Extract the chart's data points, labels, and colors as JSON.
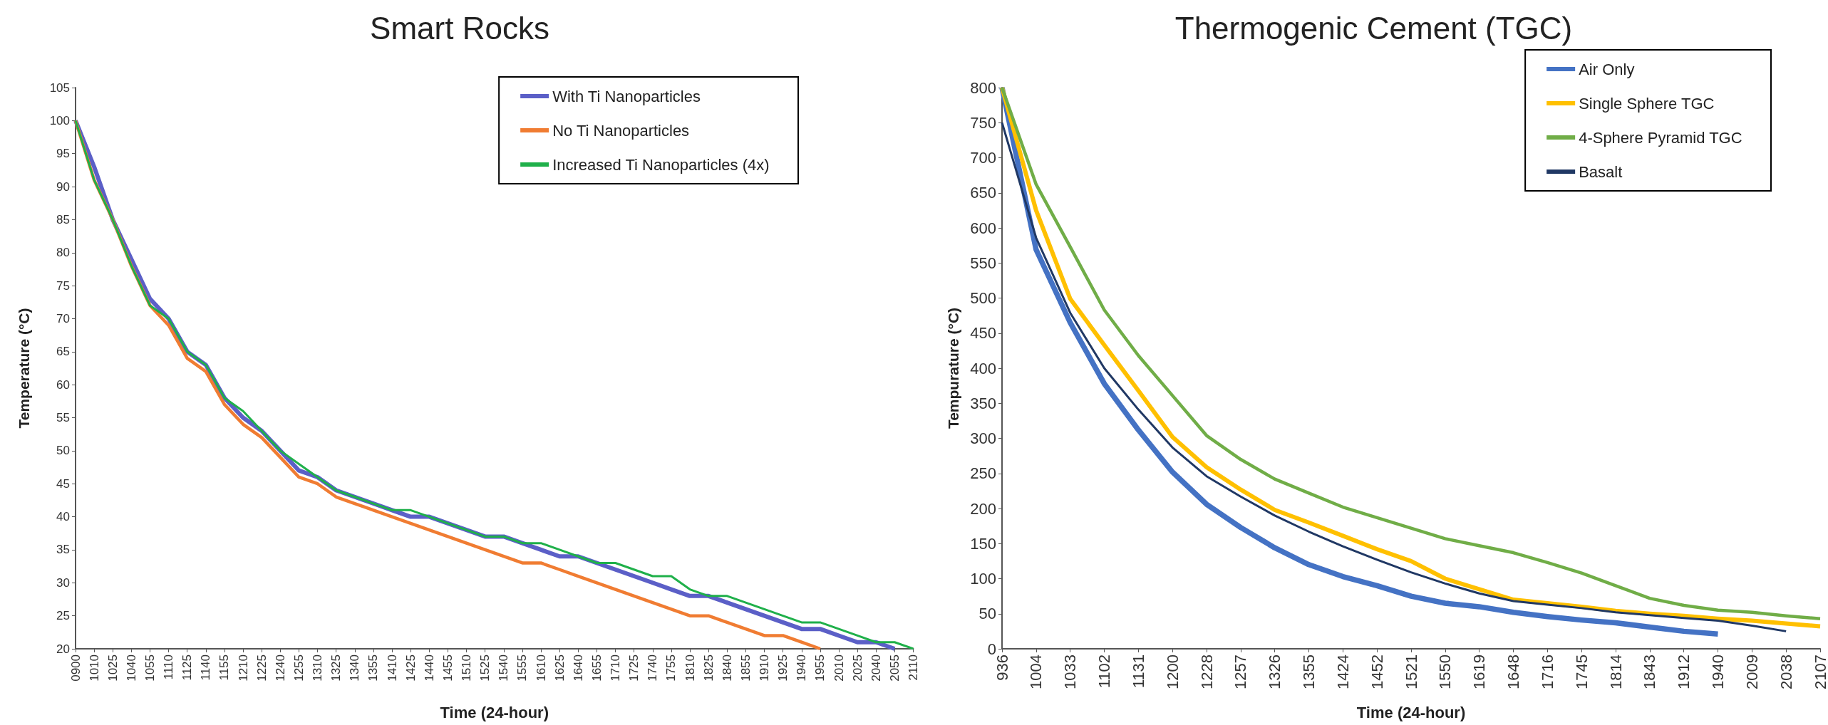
{
  "chart_data": [
    {
      "type": "line",
      "title": "Smart Rocks",
      "xlabel": "Time (24-hour)",
      "ylabel": "Temperature (°C)",
      "legend": "top right",
      "marker": "none",
      "grid": false,
      "ylim": [
        20,
        105
      ],
      "yticks": [
        20,
        25,
        30,
        35,
        40,
        45,
        50,
        55,
        60,
        65,
        70,
        75,
        80,
        85,
        90,
        95,
        100,
        105
      ],
      "categories": [
        "0900",
        "1010",
        "1025",
        "1040",
        "1055",
        "1110",
        "1125",
        "1140",
        "1155",
        "1210",
        "1225",
        "1240",
        "1255",
        "1310",
        "1325",
        "1340",
        "1355",
        "1410",
        "1425",
        "1440",
        "1455",
        "1510",
        "1525",
        "1540",
        "1555",
        "1610",
        "1625",
        "1640",
        "1655",
        "1710",
        "1725",
        "1740",
        "1755",
        "1810",
        "1825",
        "1840",
        "1855",
        "1910",
        "1925",
        "1940",
        "1955",
        "2010",
        "2025",
        "2040",
        "2055",
        "2110"
      ],
      "series": [
        {
          "name": "With Ti Nanoparticles",
          "color": "#5b5fc7",
          "values": [
            100,
            93,
            85,
            79,
            73,
            70,
            65,
            63,
            58,
            55,
            53,
            50,
            47,
            46,
            44,
            43,
            42,
            41,
            40,
            40,
            39,
            38,
            37,
            37,
            36,
            35,
            34,
            34,
            33,
            32,
            31,
            30,
            29,
            28,
            28,
            27,
            26,
            25,
            24,
            23,
            23,
            22,
            21,
            21,
            20,
            null
          ]
        },
        {
          "name": "No Ti Nanoparticles",
          "color": "#f07c32",
          "values": [
            100,
            91,
            85,
            78,
            72,
            69,
            64,
            62,
            57,
            54,
            52,
            49,
            46,
            45,
            43,
            42,
            41,
            40,
            39,
            38,
            37,
            36,
            35,
            34,
            33,
            33,
            32,
            31,
            30,
            29,
            28,
            27,
            26,
            25,
            25,
            24,
            23,
            22,
            22,
            21,
            20,
            null,
            null,
            null,
            null,
            null
          ]
        },
        {
          "name": "Increased Ti Nanoparticles (4x)",
          "color": "#1fb04a",
          "values": [
            100,
            91,
            85,
            78,
            72,
            70,
            65,
            63,
            58,
            56,
            53,
            50,
            48,
            46,
            44,
            43,
            42,
            41,
            41,
            40,
            39,
            38,
            37,
            37,
            36,
            36,
            35,
            34,
            33,
            33,
            32,
            31,
            31,
            29,
            28,
            28,
            27,
            26,
            25,
            24,
            24,
            23,
            22,
            21,
            21,
            20
          ]
        }
      ]
    },
    {
      "type": "line",
      "title": "Thermogenic Cement (TGC)",
      "xlabel": "Time (24-hour)",
      "ylabel": "Tempurature (°C)",
      "legend": "top right",
      "marker": "none",
      "grid": false,
      "ylim": [
        0,
        800
      ],
      "yticks": [
        0,
        50,
        100,
        150,
        200,
        250,
        300,
        350,
        400,
        450,
        500,
        550,
        600,
        650,
        700,
        750,
        800
      ],
      "categories": [
        "936",
        "1004",
        "1033",
        "1102",
        "1131",
        "1200",
        "1228",
        "1257",
        "1326",
        "1355",
        "1424",
        "1452",
        "1521",
        "1550",
        "1619",
        "1648",
        "1716",
        "1745",
        "1814",
        "1843",
        "1912",
        "1940",
        "2009",
        "2038",
        "2107"
      ],
      "series": [
        {
          "name": "Air Only",
          "color": "#4472c4",
          "values": [
            800,
            569,
            465,
            378,
            312,
            252,
            206,
            173,
            144,
            120,
            103,
            90,
            75,
            65,
            60,
            52,
            46,
            41,
            37,
            31,
            25,
            21,
            null,
            null,
            null
          ]
        },
        {
          "name": "Single Sphere TGC",
          "color": "#ffc000",
          "values": [
            800,
            625,
            499,
            433,
            368,
            302,
            259,
            227,
            198,
            180,
            161,
            142,
            125,
            100,
            85,
            70,
            65,
            60,
            54,
            50,
            47,
            43,
            40,
            36,
            32
          ]
        },
        {
          "name": "4-Sphere Pyramid TGC",
          "color": "#70ad47",
          "values": [
            800,
            662,
            573,
            483,
            418,
            361,
            304,
            270,
            242,
            222,
            202,
            187,
            172,
            157,
            147,
            137,
            123,
            108,
            90,
            72,
            62,
            55,
            52,
            47,
            43
          ]
        },
        {
          "name": "Basalt",
          "color": "#203864",
          "values": [
            750,
            586,
            479,
            400,
            341,
            287,
            246,
            217,
            190,
            167,
            146,
            127,
            109,
            93,
            79,
            68,
            63,
            58,
            52,
            48,
            44,
            40,
            33,
            25,
            null
          ]
        }
      ]
    }
  ]
}
